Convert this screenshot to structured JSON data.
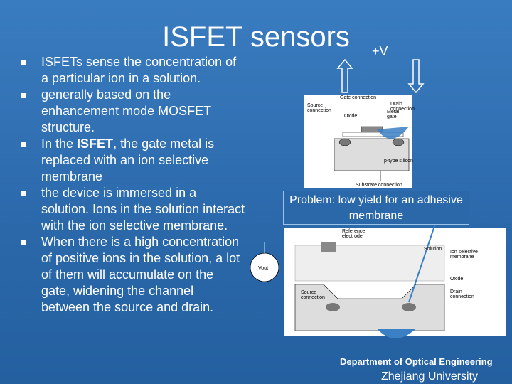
{
  "header": {
    "title": "ISFET sensors"
  },
  "bullets": [
    {
      "text": "ISFETs sense the concentration of a particular ion in a solution."
    },
    {
      "text": "generally based on the enhancement mode MOSFET structure."
    },
    {
      "pre": "In the ",
      "bold": "ISFET",
      "post": ", the gate metal is replaced with an ion selective membrane"
    },
    {
      "text": "the device is immersed in a solution. Ions in the solution interact with the ion selective membrane."
    },
    {
      "text": "When there is a high concentration of positive ions in the solution, a lot of them will accumulate on the gate, widening the channel between the source and drain."
    }
  ],
  "voltage_label": "+V",
  "diagram1": {
    "labels": [
      "Gate connection",
      "Source connection",
      "Oxide",
      "Metal gate",
      "Drain connection",
      "p-type silicon",
      "Substrate connection"
    ]
  },
  "problem": "Problem: low yield for an adhesive membrane",
  "diagram2": {
    "labels": [
      "Reference electrode",
      "Solution",
      "Ion selective membrane",
      "Oxide",
      "Drain connection",
      "Source connection",
      "Vout"
    ]
  },
  "footer": {
    "department": "Department of Optical Engineering",
    "university": "Zhejiang University"
  }
}
